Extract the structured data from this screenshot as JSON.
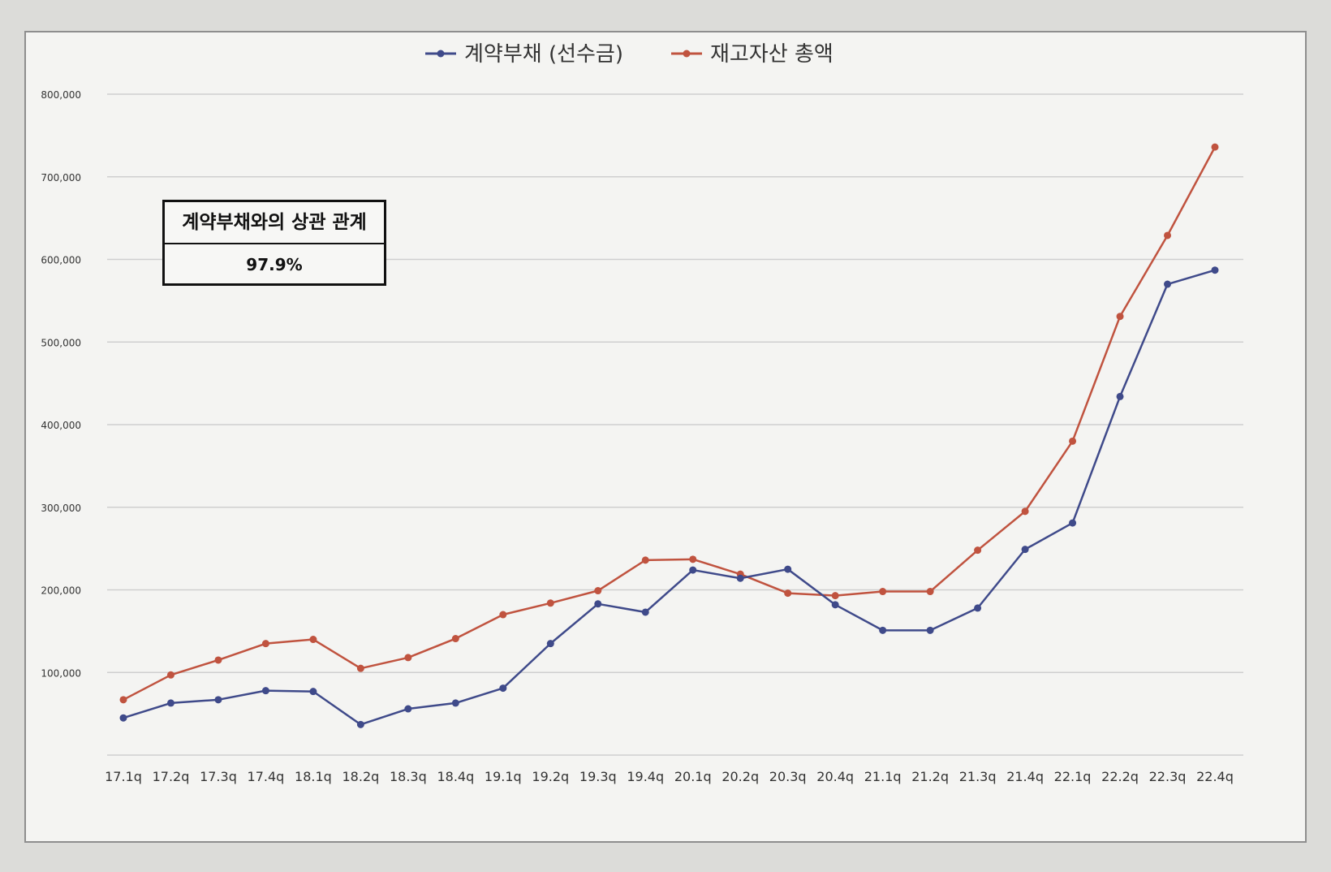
{
  "chart_data": {
    "type": "line",
    "categories": [
      "17.1q",
      "17.2q",
      "17.3q",
      "17.4q",
      "18.1q",
      "18.2q",
      "18.3q",
      "18.4q",
      "19.1q",
      "19.2q",
      "19.3q",
      "19.4q",
      "20.1q",
      "20.2q",
      "20.3q",
      "20.4q",
      "21.1q",
      "21.2q",
      "21.3q",
      "21.4q",
      "22.1q",
      "22.2q",
      "22.3q",
      "22.4q"
    ],
    "series": [
      {
        "name": "계약부채 (선수금)",
        "color": "#3f4a8a",
        "values": [
          45000,
          63000,
          67000,
          78000,
          77000,
          37000,
          56000,
          63000,
          81000,
          135000,
          183000,
          173000,
          224000,
          214000,
          225000,
          182000,
          151000,
          151000,
          178000,
          249000,
          281000,
          434000,
          570000,
          587000
        ]
      },
      {
        "name": "재고자산 총액",
        "color": "#c0533f",
        "values": [
          67000,
          97000,
          115000,
          135000,
          140000,
          105000,
          118000,
          141000,
          170000,
          184000,
          199000,
          236000,
          237000,
          219000,
          196000,
          193000,
          198000,
          198000,
          248000,
          295000,
          380000,
          531000,
          629000,
          736000
        ]
      }
    ],
    "yticks": [
      100000,
      200000,
      300000,
      400000,
      500000,
      600000,
      700000,
      800000
    ],
    "ytick_labels": [
      "100,000",
      "200,000",
      "300,000",
      "400,000",
      "500,000",
      "600,000",
      "700,000",
      "800,000"
    ],
    "ylim": [
      0,
      800000
    ],
    "grid": true,
    "legend_position": "top-center"
  },
  "annotation": {
    "title": "계약부채와의 상관 관계",
    "value": "97.9%"
  }
}
